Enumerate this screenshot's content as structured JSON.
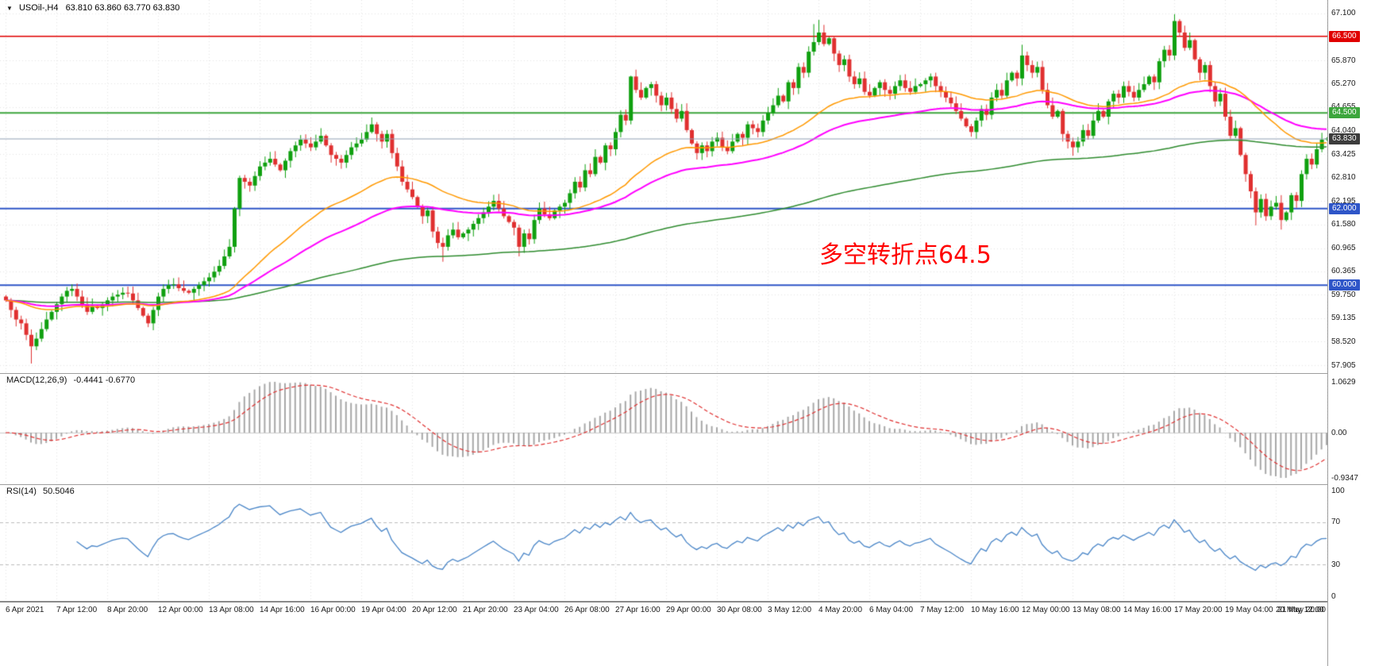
{
  "title_bar": {
    "dropdown_icon": "▼",
    "symbol_label": "USOil-,H4",
    "ohlc": "63.810 63.860 63.770 63.830"
  },
  "annotation": {
    "text": "多空转折点64.5",
    "color": "#FF0000"
  },
  "macd_panel": {
    "label": "MACD(12,26,9)",
    "values": "-0.4441 -0.6770",
    "ticks": [
      "1.0629",
      "0.00",
      "-0.9347"
    ]
  },
  "rsi_panel": {
    "label": "RSI(14)",
    "value": "50.5046",
    "ticks": [
      "100",
      "70",
      "30",
      "0"
    ],
    "levels": [
      70,
      30
    ]
  },
  "colors": {
    "bull": "#0FA00F",
    "bear": "#E03030",
    "ma_fast": "#FF9900",
    "ma_mid": "#FF00FF",
    "ma_slow": "#2E8B2E",
    "macd_hist": "#A8A8A8",
    "macd_signal": "#E03030",
    "rsi_line": "#4A86C8",
    "level_red": "#E00000",
    "level_green": "#3DA63D",
    "level_blue": "#2E55C8",
    "bid_line": "#8FA0B4"
  },
  "price_scale": {
    "ticks": [
      {
        "label": "67.100",
        "price": 67.1
      },
      {
        "label": "65.870",
        "price": 65.87
      },
      {
        "label": "65.270",
        "price": 65.27
      },
      {
        "label": "64.655",
        "price": 64.655
      },
      {
        "label": "64.040",
        "price": 64.04
      },
      {
        "label": "63.425",
        "price": 63.425
      },
      {
        "label": "62.810",
        "price": 62.81
      },
      {
        "label": "62.195",
        "price": 62.195
      },
      {
        "label": "61.580",
        "price": 61.58
      },
      {
        "label": "60.965",
        "price": 60.965
      },
      {
        "label": "60.365",
        "price": 60.365
      },
      {
        "label": "59.750",
        "price": 59.75
      },
      {
        "label": "59.135",
        "price": 59.135
      },
      {
        "label": "58.520",
        "price": 58.52
      },
      {
        "label": "57.905",
        "price": 57.905
      }
    ],
    "badges": [
      {
        "label": "66.500",
        "price": 66.5,
        "bg": "#E00000"
      },
      {
        "label": "64.500",
        "price": 64.5,
        "bg": "#3DA63D"
      },
      {
        "label": "63.830",
        "price": 63.83,
        "bg": "#3C3C3C"
      },
      {
        "label": "62.000",
        "price": 62.0,
        "bg": "#2E55C8"
      },
      {
        "label": "60.000",
        "price": 60.0,
        "bg": "#2E55C8"
      }
    ]
  },
  "time_axis": {
    "labels": [
      "6 Apr 2021",
      "7 Apr 12:00",
      "8 Apr 20:00",
      "12 Apr 00:00",
      "13 Apr 08:00",
      "14 Apr 16:00",
      "16 Apr 00:00",
      "19 Apr 04:00",
      "20 Apr 12:00",
      "21 Apr 20:00",
      "23 Apr 04:00",
      "26 Apr 08:00",
      "27 Apr 16:00",
      "29 Apr 00:00",
      "30 Apr 08:00",
      "3 May 12:00",
      "4 May 20:00",
      "6 May 04:00",
      "7 May 12:00",
      "10 May 16:00",
      "12 May 00:00",
      "13 May 08:00",
      "14 May 16:00",
      "17 May 20:00",
      "19 May 04:00",
      "20 May 12:00",
      "21 May 20:00"
    ]
  },
  "chart_data": [
    {
      "type": "candlestick",
      "symbol": "USOil-",
      "timeframe": "H4",
      "current_ohlc": {
        "open": 63.81,
        "high": 63.86,
        "low": 63.77,
        "close": 63.83
      },
      "y_range": [
        57.7,
        67.45
      ],
      "first_open": 59.7,
      "closes": [
        59.6,
        59.35,
        59.1,
        59.0,
        58.7,
        58.4,
        58.6,
        58.85,
        59.1,
        59.3,
        59.5,
        59.7,
        59.85,
        59.9,
        59.7,
        59.5,
        59.3,
        59.45,
        59.4,
        59.5,
        59.6,
        59.7,
        59.75,
        59.8,
        59.78,
        59.6,
        59.4,
        59.2,
        59.0,
        59.35,
        59.7,
        59.9,
        60.0,
        60.02,
        59.92,
        59.85,
        59.8,
        59.9,
        60.0,
        60.1,
        60.2,
        60.35,
        60.5,
        60.75,
        61.0,
        62.0,
        62.8,
        62.7,
        62.6,
        62.85,
        63.1,
        63.2,
        63.3,
        63.15,
        63.0,
        63.25,
        63.5,
        63.65,
        63.8,
        63.7,
        63.6,
        63.75,
        63.9,
        63.65,
        63.4,
        63.3,
        63.2,
        63.4,
        63.6,
        63.7,
        63.8,
        64.0,
        64.2,
        63.95,
        63.75,
        63.95,
        63.45,
        63.1,
        62.7,
        62.5,
        62.3,
        62.05,
        61.8,
        61.95,
        61.4,
        61.1,
        61.0,
        61.3,
        61.45,
        61.25,
        61.35,
        61.45,
        61.6,
        61.75,
        61.9,
        62.05,
        62.2,
        62.0,
        61.8,
        61.65,
        61.5,
        61.0,
        61.35,
        61.2,
        61.7,
        62.0,
        61.85,
        61.75,
        61.95,
        62.05,
        62.15,
        62.4,
        62.7,
        62.55,
        63.0,
        62.9,
        63.35,
        63.2,
        63.65,
        63.55,
        64.0,
        64.45,
        64.3,
        65.45,
        65.1,
        64.9,
        65.15,
        65.25,
        64.95,
        64.7,
        64.9,
        64.6,
        64.35,
        64.55,
        64.05,
        63.7,
        63.45,
        63.65,
        63.5,
        63.75,
        63.85,
        63.6,
        63.5,
        63.75,
        63.95,
        63.85,
        64.2,
        64.1,
        64.0,
        64.3,
        64.5,
        64.7,
        64.95,
        64.8,
        65.3,
        65.15,
        65.7,
        65.55,
        66.1,
        66.35,
        66.6,
        66.3,
        66.45,
        66.05,
        65.75,
        65.9,
        65.45,
        65.25,
        65.4,
        65.05,
        64.95,
        65.15,
        65.3,
        65.1,
        65.0,
        65.2,
        65.35,
        65.15,
        65.05,
        65.2,
        65.25,
        65.35,
        65.45,
        65.2,
        65.05,
        64.9,
        64.75,
        64.55,
        64.35,
        64.15,
        64.0,
        64.3,
        64.6,
        64.45,
        64.9,
        65.1,
        64.95,
        65.35,
        65.55,
        65.4,
        66.0,
        65.75,
        65.55,
        65.7,
        65.1,
        64.7,
        64.4,
        64.55,
        63.95,
        63.75,
        63.6,
        63.75,
        64.05,
        63.9,
        64.3,
        64.55,
        64.4,
        64.8,
        65.0,
        64.9,
        65.2,
        65.05,
        64.9,
        65.1,
        65.25,
        65.45,
        65.3,
        65.85,
        66.15,
        66.0,
        66.9,
        66.6,
        66.2,
        66.4,
        65.9,
        65.55,
        65.75,
        65.2,
        64.8,
        65.0,
        64.4,
        63.9,
        64.1,
        63.4,
        62.9,
        62.45,
        61.9,
        62.25,
        61.8,
        62.05,
        62.15,
        61.7,
        61.9,
        62.35,
        62.2,
        62.9,
        63.3,
        63.15,
        63.55,
        63.8,
        63.83
      ],
      "wick_overrides": {
        "5": {
          "low": 57.95
        },
        "28": {
          "low": 58.9
        },
        "45": {
          "low": 60.85
        },
        "72": {
          "high": 64.38
        },
        "86": {
          "low": 60.61
        },
        "101": {
          "low": 60.75
        },
        "123": {
          "high": 65.47
        },
        "136": {
          "low": 63.28
        },
        "159": {
          "high": 66.82
        },
        "160": {
          "high": 66.93
        },
        "190": {
          "low": 63.88
        },
        "200": {
          "high": 66.28
        },
        "210": {
          "low": 63.38
        },
        "230": {
          "high": 67.08
        },
        "231": {
          "high": 66.95
        },
        "246": {
          "low": 61.56
        },
        "251": {
          "low": 61.45
        },
        "260": {
          "high": 63.86,
          "low": 63.77
        }
      },
      "levels": [
        {
          "price": 66.5,
          "color": "#E00000",
          "width": 1.6,
          "label": "66.500"
        },
        {
          "price": 64.5,
          "color": "#3DA63D",
          "width": 2,
          "label": "64.500"
        },
        {
          "price": 62.0,
          "color": "#2E55C8",
          "width": 2,
          "label": "62.000"
        },
        {
          "price": 60.0,
          "color": "#2E55C8",
          "width": 2,
          "label": "60.000"
        }
      ],
      "current_price_line": {
        "price": 63.83,
        "color": "#8FA0B4",
        "width": 1
      },
      "moving_averages": [
        {
          "period": 210,
          "color": "#2E8B2E",
          "width": 1.5
        },
        {
          "period": 70,
          "color": "#FF00FF",
          "width": 2
        },
        {
          "period": 40,
          "color": "#FF9900",
          "width": 1.5
        }
      ],
      "annotation": "多空转折点64.5"
    },
    {
      "type": "bar",
      "name": "MACD",
      "params": "12,26,9",
      "current_values": [
        -0.4441,
        -0.677
      ],
      "y_ticks": [
        1.0629,
        0.0,
        -0.9347
      ],
      "derived_from": "closes"
    },
    {
      "type": "line",
      "name": "RSI",
      "params": "14",
      "current_value": 50.5046,
      "y_ticks": [
        100,
        70,
        30,
        0
      ],
      "levels": [
        70,
        30
      ],
      "derived_from": "closes"
    }
  ]
}
